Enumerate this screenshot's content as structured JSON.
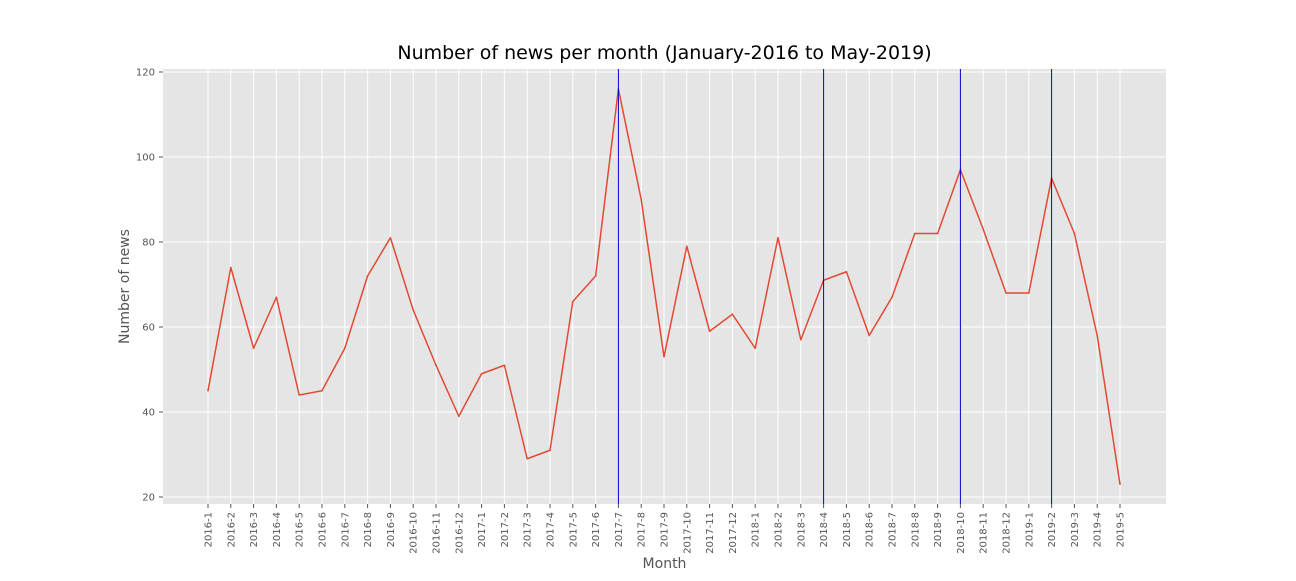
{
  "chart_data": {
    "type": "line",
    "title": "Number of news per month (January-2016 to May-2019)",
    "xlabel": "Month",
    "ylabel": "Number of news",
    "ylim": [
      18.5,
      121
    ],
    "yticks": [
      20,
      40,
      60,
      80,
      100,
      120
    ],
    "grid": true,
    "legend": "none",
    "categories": [
      "2016-1",
      "2016-2",
      "2016-3",
      "2016-4",
      "2016-5",
      "2016-6",
      "2016-7",
      "2016-8",
      "2016-9",
      "2016-10",
      "2016-11",
      "2016-12",
      "2017-1",
      "2017-2",
      "2017-3",
      "2017-4",
      "2017-5",
      "2017-6",
      "2017-7",
      "2017-8",
      "2017-9",
      "2017-10",
      "2017-11",
      "2017-12",
      "2018-1",
      "2018-2",
      "2018-3",
      "2018-4",
      "2018-5",
      "2018-6",
      "2018-7",
      "2018-8",
      "2018-9",
      "2018-10",
      "2018-11",
      "2018-12",
      "2019-1",
      "2019-2",
      "2019-3",
      "2019-4",
      "2019-5"
    ],
    "series": [
      {
        "values": [
          45,
          74,
          55,
          67,
          44,
          45,
          55,
          72,
          81,
          64,
          51,
          39,
          49,
          51,
          29,
          31,
          66,
          72,
          116,
          90,
          53,
          79,
          59,
          63,
          55,
          81,
          57,
          71,
          73,
          58,
          67,
          82,
          82,
          97,
          83,
          68,
          68,
          95,
          82,
          58,
          23
        ],
        "color": "#e24a33"
      }
    ],
    "vlines": [
      "2017-7",
      "2018-4",
      "2018-10",
      "2019-2"
    ],
    "vline_color": "#0000cc",
    "background_color": "#e5e5e5",
    "grid_color": "#ffffff"
  }
}
